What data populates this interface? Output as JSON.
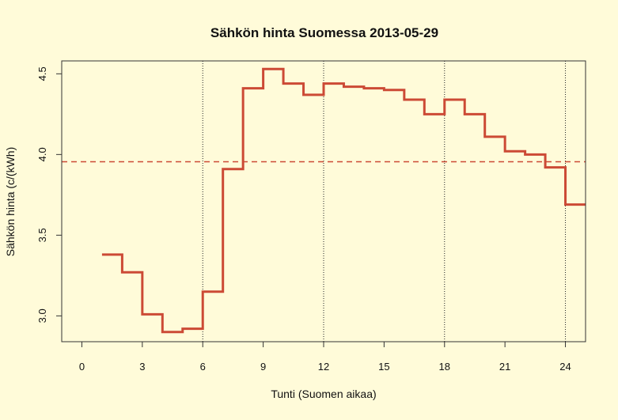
{
  "chart_data": {
    "type": "line",
    "title": "Sähkön hinta Suomessa 2013-05-29",
    "xlabel": "Tunti (Suomen aikaa)",
    "ylabel": "Sähkön hinta (c/(kWh)",
    "xlim": [
      -1,
      25
    ],
    "ylim": [
      2.84,
      4.58
    ],
    "xticks": [
      0,
      3,
      6,
      9,
      12,
      15,
      18,
      21,
      24
    ],
    "yticks": [
      3.0,
      3.5,
      4.0,
      4.5
    ],
    "ytick_labels": [
      "3.0",
      "3.5",
      "4.0",
      "4.5"
    ],
    "vertical_gridlines": [
      6,
      12,
      18,
      24
    ],
    "reference_line": {
      "y": 3.955,
      "style": "dashed"
    },
    "line_color": "#cc4a35",
    "series": [
      {
        "step": "post",
        "x": [
          1,
          2,
          3,
          4,
          5,
          6,
          7,
          8,
          9,
          10,
          11,
          12,
          13,
          14,
          15,
          16,
          17,
          18,
          19,
          20,
          21,
          22,
          23,
          24
        ],
        "values": [
          3.38,
          3.27,
          3.01,
          2.9,
          2.92,
          3.15,
          3.91,
          4.41,
          4.53,
          4.44,
          4.37,
          4.44,
          4.42,
          4.41,
          4.4,
          4.34,
          4.25,
          4.34,
          4.25,
          4.11,
          4.02,
          4.0,
          3.92,
          3.69
        ]
      }
    ]
  }
}
